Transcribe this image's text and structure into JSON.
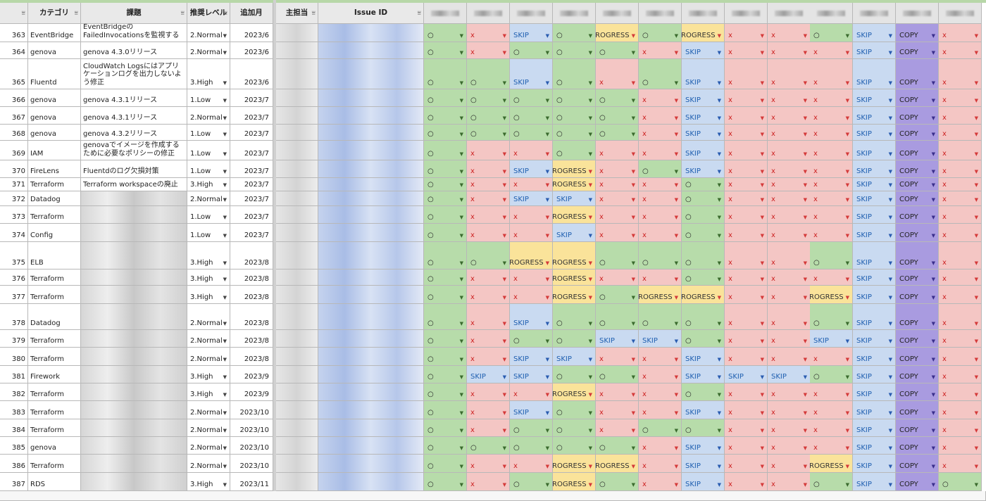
{
  "headers": {
    "num": "",
    "category": "カテゴリ",
    "title": "課題",
    "level": "推奨レベル",
    "month": "追加月",
    "owner": "主担当",
    "issue_id": "Issue ID"
  },
  "colors": {
    "ok": "#b7dcaa",
    "x": "#f4c6c4",
    "skip": "#c9daf1",
    "progress": "#fae39a",
    "copy": "#a99be0",
    "header": "#e9e9e9"
  },
  "legend_status": {
    "ok": "○",
    "x": "x",
    "skip": "SKIP",
    "progress": "PROGRESS",
    "copy": "COPY"
  },
  "rows": [
    {
      "n": "363",
      "cat": "EventBridge",
      "title": "EventBridgeのFailedInvocationsを監視する",
      "lvl": "2.Normal",
      "mon": "2023/6",
      "st": [
        "o",
        "x",
        "s",
        "o",
        "p",
        "o",
        "p",
        "x",
        "x",
        "o",
        "s",
        "c",
        "x"
      ]
    },
    {
      "n": "364",
      "cat": "genova",
      "title": "genova 4.3.0リリース",
      "lvl": "2.Normal",
      "mon": "2023/6",
      "st": [
        "o",
        "x",
        "o",
        "o",
        "o",
        "x",
        "s",
        "x",
        "x",
        "x",
        "s",
        "c",
        "x"
      ]
    },
    {
      "n": "365",
      "cat": "Fluentd",
      "title": "CloudWatch Logsにはアプリケーションログを出力しないよう修正",
      "lvl": "3.High",
      "mon": "2023/6",
      "st": [
        "o",
        "o",
        "s",
        "o",
        "x",
        "o",
        "s",
        "x",
        "x",
        "x",
        "s",
        "c",
        "x"
      ]
    },
    {
      "n": "366",
      "cat": "genova",
      "title": "genova 4.3.1リリース",
      "lvl": "1.Low",
      "mon": "2023/7",
      "st": [
        "o",
        "o",
        "o",
        "o",
        "o",
        "x",
        "s",
        "x",
        "x",
        "x",
        "s",
        "c",
        "x"
      ]
    },
    {
      "n": "367",
      "cat": "genova",
      "title": "genova 4.3.1リリース",
      "lvl": "2.Normal",
      "mon": "2023/7",
      "st": [
        "o",
        "o",
        "o",
        "o",
        "o",
        "x",
        "s",
        "x",
        "x",
        "x",
        "s",
        "c",
        "x"
      ]
    },
    {
      "n": "368",
      "cat": "genova",
      "title": "genova 4.3.2リリース",
      "lvl": "1.Low",
      "mon": "2023/7",
      "st": [
        "o",
        "o",
        "o",
        "o",
        "o",
        "x",
        "s",
        "x",
        "x",
        "x",
        "s",
        "c",
        "x"
      ]
    },
    {
      "n": "369",
      "cat": "IAM",
      "title": "genovaでイメージを作成するために必要なポリシーの修正",
      "lvl": "1.Low",
      "mon": "2023/7",
      "st": [
        "o",
        "x",
        "x",
        "o",
        "x",
        "x",
        "s",
        "x",
        "x",
        "x",
        "s",
        "c",
        "x"
      ]
    },
    {
      "n": "370",
      "cat": "FireLens",
      "title": "Fluentdのログ欠損対策",
      "lvl": "1.Low",
      "mon": "2023/7",
      "st": [
        "o",
        "x",
        "s",
        "p",
        "x",
        "o",
        "s",
        "x",
        "x",
        "x",
        "s",
        "c",
        "x"
      ]
    },
    {
      "n": "371",
      "cat": "Terraform",
      "title": "Terraform workspaceの廃止",
      "lvl": "3.High",
      "mon": "2023/7",
      "st": [
        "o",
        "x",
        "x",
        "p",
        "x",
        "x",
        "o",
        "x",
        "x",
        "x",
        "s",
        "c",
        "x"
      ]
    },
    {
      "n": "372",
      "cat": "Datadog",
      "title": "",
      "lvl": "2.Normal",
      "mon": "2023/7",
      "st": [
        "o",
        "x",
        "s",
        "s",
        "x",
        "x",
        "o",
        "x",
        "x",
        "x",
        "s",
        "c",
        "x"
      ]
    },
    {
      "n": "373",
      "cat": "Terraform",
      "title": "",
      "lvl": "1.Low",
      "mon": "2023/7",
      "st": [
        "o",
        "x",
        "x",
        "p",
        "x",
        "x",
        "o",
        "x",
        "x",
        "x",
        "s",
        "c",
        "x"
      ]
    },
    {
      "n": "374",
      "cat": "Config",
      "title": "",
      "lvl": "1.Low",
      "mon": "2023/7",
      "st": [
        "o",
        "x",
        "x",
        "s",
        "x",
        "x",
        "o",
        "x",
        "x",
        "x",
        "s",
        "c",
        "x"
      ]
    },
    {
      "n": "375",
      "cat": "ELB",
      "title": "",
      "lvl": "3.High",
      "mon": "2023/8",
      "st": [
        "o",
        "o",
        "p",
        "p",
        "o",
        "o",
        "o",
        "x",
        "x",
        "o",
        "s",
        "c",
        "x"
      ]
    },
    {
      "n": "376",
      "cat": "Terraform",
      "title": "",
      "lvl": "3.High",
      "mon": "2023/8",
      "st": [
        "o",
        "x",
        "x",
        "p",
        "x",
        "x",
        "o",
        "x",
        "x",
        "x",
        "s",
        "c",
        "x"
      ]
    },
    {
      "n": "377",
      "cat": "Terraform",
      "title": "",
      "lvl": "3.High",
      "mon": "2023/8",
      "st": [
        "o",
        "x",
        "x",
        "p",
        "o",
        "p",
        "p",
        "x",
        "x",
        "p",
        "s",
        "c",
        "x"
      ]
    },
    {
      "n": "378",
      "cat": "Datadog",
      "title": "",
      "lvl": "2.Normal",
      "mon": "2023/8",
      "st": [
        "o",
        "x",
        "s",
        "o",
        "o",
        "o",
        "o",
        "x",
        "x",
        "o",
        "s",
        "c",
        "x"
      ]
    },
    {
      "n": "379",
      "cat": "Terraform",
      "title": "",
      "lvl": "2.Normal",
      "mon": "2023/8",
      "st": [
        "o",
        "x",
        "o",
        "o",
        "s",
        "s",
        "o",
        "x",
        "x",
        "s",
        "s",
        "c",
        "x"
      ]
    },
    {
      "n": "380",
      "cat": "Terraform",
      "title": "",
      "lvl": "2.Normal",
      "mon": "2023/8",
      "st": [
        "o",
        "x",
        "s",
        "s",
        "x",
        "x",
        "s",
        "x",
        "x",
        "x",
        "s",
        "c",
        "x"
      ]
    },
    {
      "n": "381",
      "cat": "Firework",
      "title": "",
      "lvl": "3.High",
      "mon": "2023/9",
      "st": [
        "o",
        "s",
        "s",
        "o",
        "o",
        "x",
        "s",
        "s",
        "s",
        "o",
        "s",
        "c",
        "x"
      ]
    },
    {
      "n": "382",
      "cat": "Terraform",
      "title": "",
      "lvl": "3.High",
      "mon": "2023/9",
      "st": [
        "o",
        "x",
        "x",
        "p",
        "x",
        "x",
        "o",
        "x",
        "x",
        "x",
        "s",
        "c",
        "x"
      ]
    },
    {
      "n": "383",
      "cat": "Terraform",
      "title": "",
      "lvl": "2.Normal",
      "mon": "2023/10",
      "st": [
        "o",
        "x",
        "s",
        "o",
        "x",
        "x",
        "s",
        "x",
        "x",
        "x",
        "s",
        "c",
        "x"
      ]
    },
    {
      "n": "384",
      "cat": "Terraform",
      "title": "",
      "lvl": "2.Normal",
      "mon": "2023/10",
      "st": [
        "o",
        "x",
        "o",
        "o",
        "x",
        "o",
        "o",
        "x",
        "x",
        "x",
        "s",
        "c",
        "x"
      ]
    },
    {
      "n": "385",
      "cat": "genova",
      "title": "",
      "lvl": "2.Normal",
      "mon": "2023/10",
      "st": [
        "o",
        "o",
        "o",
        "o",
        "o",
        "x",
        "s",
        "x",
        "x",
        "x",
        "s",
        "c",
        "x"
      ]
    },
    {
      "n": "386",
      "cat": "Terraform",
      "title": "",
      "lvl": "2.Normal",
      "mon": "2023/10",
      "st": [
        "o",
        "x",
        "x",
        "p",
        "p",
        "x",
        "s",
        "x",
        "x",
        "p",
        "s",
        "c",
        "x"
      ]
    },
    {
      "n": "387",
      "cat": "RDS",
      "title": "",
      "lvl": "3.High",
      "mon": "2023/11",
      "st": [
        "o",
        "x",
        "o",
        "p",
        "o",
        "x",
        "s",
        "x",
        "x",
        "o",
        "s",
        "c",
        "o"
      ]
    }
  ]
}
